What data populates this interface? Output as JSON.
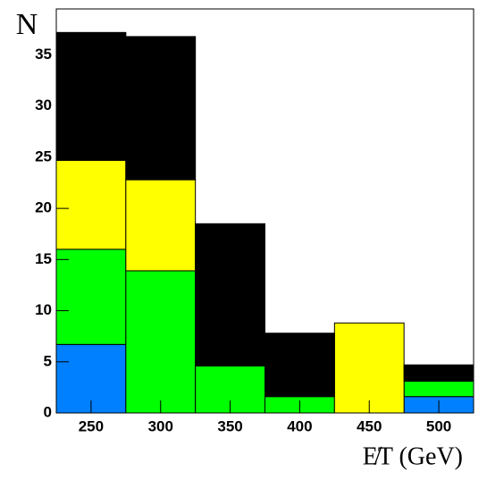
{
  "chart_data": {
    "type": "histogram",
    "y_label": "N",
    "x_label": "E̸T (GeV)",
    "bins": [
      225,
      275,
      325,
      375,
      425,
      475,
      525
    ],
    "series": [
      {
        "name": "blue",
        "color": "#0080ff",
        "values": [
          6.7,
          0,
          0,
          0,
          0,
          1.6
        ]
      },
      {
        "name": "green",
        "color": "#00ff00",
        "values": [
          9.3,
          13.9,
          4.6,
          1.6,
          0,
          1.5
        ]
      },
      {
        "name": "yellow",
        "color": "#ffff00",
        "values": [
          8.7,
          8.9,
          0,
          0,
          8.8,
          0
        ]
      },
      {
        "name": "black",
        "color": "#000000",
        "values": [
          12.5,
          14,
          13.9,
          6.2,
          0,
          1.6
        ]
      }
    ],
    "xlim": [
      225,
      525
    ],
    "xticks": [
      250,
      300,
      350,
      400,
      450,
      500
    ],
    "ylim": [
      0,
      39.5
    ],
    "yticks": [
      0,
      5,
      10,
      15,
      20,
      25,
      30,
      35
    ]
  }
}
